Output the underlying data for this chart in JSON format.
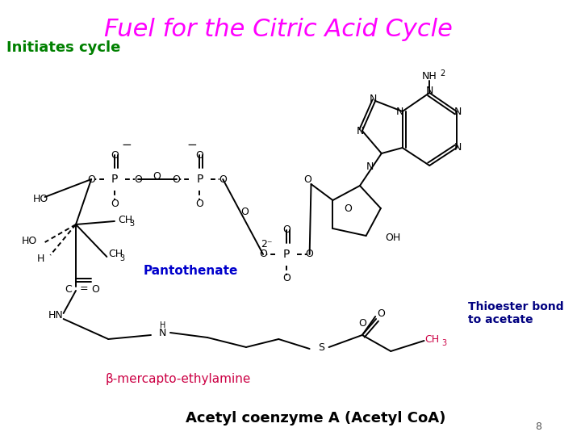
{
  "title": "Fuel for the Citric Acid Cycle",
  "title_color": "#FF00FF",
  "title_fontsize": 22,
  "initiates_text": "Initiates cycle",
  "initiates_color": "#008000",
  "initiates_fontsize": 13,
  "pantothenate_text": "Pantothenate",
  "pantothenate_color": "#0000CC",
  "thioester_text": "Thioester bond\nto acetate",
  "thioester_color": "#000080",
  "beta_text": "β-mercapto-ethylamine",
  "beta_color": "#CC0044",
  "bottom_text": "Acetyl coenzyme A (Acetyl CoA)",
  "bottom_color": "#000000",
  "page_num": "8",
  "bg_color": "#FFFFFF",
  "magenta": "#CC0044"
}
